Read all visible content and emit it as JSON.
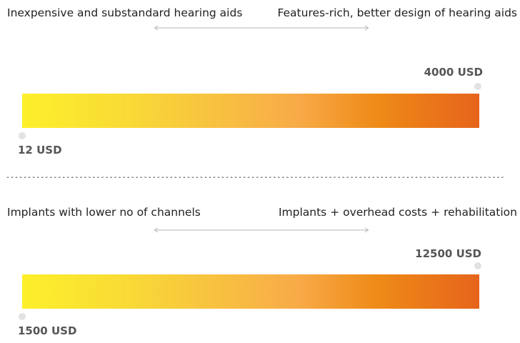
{
  "panels": [
    {
      "left_label": "Inexpensive and substandard hearing aids",
      "right_label": "Features-rich, better design of hearing aids",
      "min_value": "12 USD",
      "max_value": "4000 USD"
    },
    {
      "left_label": "Implants with lower no of channels",
      "right_label": "Implants + overhead costs + rehabilitation",
      "min_value": "1500 USD",
      "max_value": "12500 USD"
    }
  ],
  "divider": "--------------------------------------------------------------------------------------------------------------------",
  "colors": {
    "gradient_start": "#fdf02b",
    "gradient_end": "#e6641b",
    "arrow": "#b5b5b5",
    "value_text": "#555555",
    "marker_dot": "#e2e2e2"
  }
}
